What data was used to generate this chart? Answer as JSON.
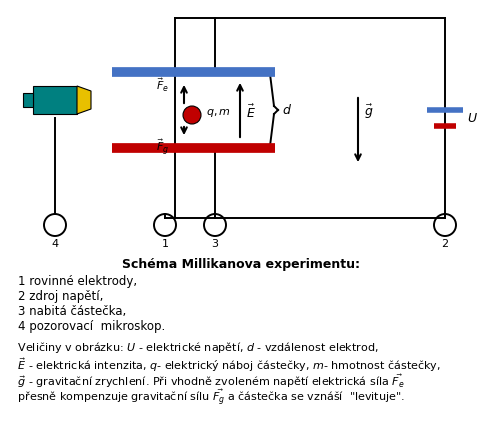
{
  "bg_color": "#ffffff",
  "fig_width": 4.81,
  "fig_height": 4.45,
  "dpi": 100,
  "title_text": "Schéma Millikanova experimentu:",
  "legend_lines": [
    "1 rovinné elektrody,",
    "2 zdroj napětí,",
    "3 nabitá částečka,",
    "4 pozorovací  mikroskop."
  ],
  "desc_lines": [
    " Veličiny v obrázku: $U$ - elektrické napětí, $d$ - vzdálenost elektrod,",
    " $\\vec{E}$ - elektrická intenzita, $q$- elektrický náboj částečky, $m$- hmotnost částečky,",
    " $\\vec{g}$ - gravitační zrychlení. Při vhodně zvoleném napětí elektrická síla $\\vec{F_e}$",
    " přesně kompenzuje gravitační sílu $\\vec{F_g}$ a částečka se vznáší  \"levituje\"."
  ],
  "blue_electrode_color": "#4472c4",
  "red_electrode_color": "#c00000",
  "circuit_color": "#000000",
  "particle_color": "#c00000",
  "microscope_body_color": "#008080",
  "microscope_lens_color": "#e8c000"
}
